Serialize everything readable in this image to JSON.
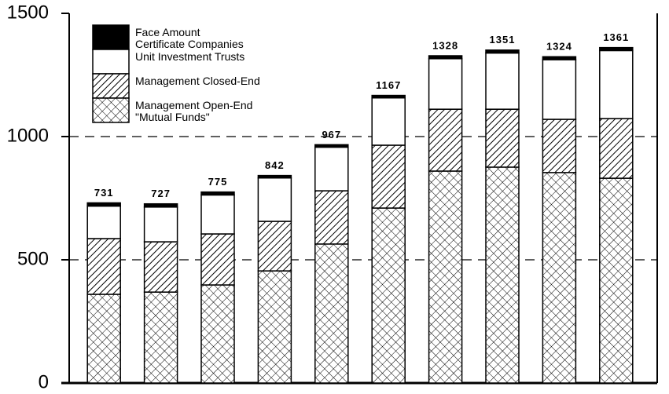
{
  "chart_data": {
    "type": "stacked_bar",
    "categories": [
      null,
      null,
      null,
      null,
      null,
      null,
      null,
      null,
      null,
      null
    ],
    "series": [
      {
        "name": "Management Open-End\n\"Mutual Funds\"",
        "color": "#000000",
        "pattern": "cross",
        "values": [
          360,
          369,
          398,
          455,
          564,
          710,
          860,
          876,
          854,
          831
        ]
      },
      {
        "name": "Management Closed-End",
        "color": "#000000",
        "pattern": "diagonal",
        "values": [
          226,
          204,
          207,
          201,
          216,
          255,
          251,
          235,
          216,
          242
        ]
      },
      {
        "name": "Unit Investment Trusts",
        "color": "#ffffff",
        "values": [
          132,
          141,
          158,
          176,
          177,
          192,
          205,
          228,
          242,
          276
        ]
      },
      {
        "name": "Face Amount\nCertificate Companies",
        "color": "#000000",
        "values": [
          13,
          13,
          12,
          10,
          10,
          10,
          12,
          12,
          12,
          12
        ]
      }
    ],
    "totals": [
      731,
      727,
      775,
      842,
      967,
      1167,
      1328,
      1351,
      1324,
      1361
    ],
    "ylim": [
      0,
      1500
    ],
    "yticks": [
      0,
      500,
      1000,
      1500
    ],
    "grid": true,
    "legend": "upper-left"
  }
}
